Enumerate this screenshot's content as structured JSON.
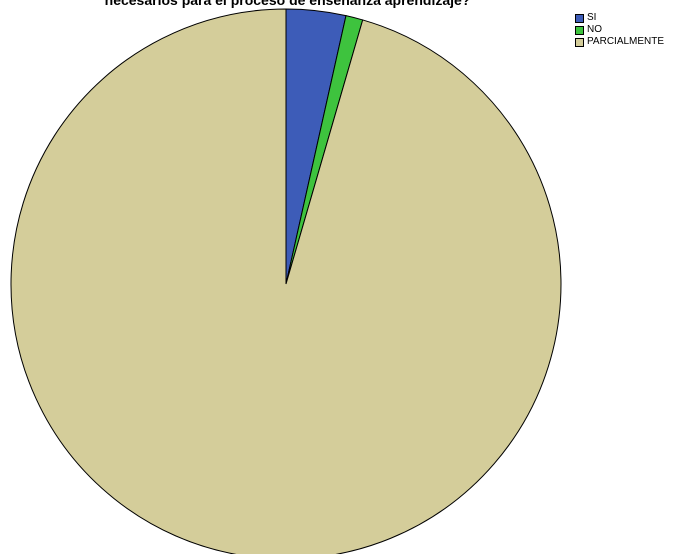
{
  "chart_data": {
    "type": "pie",
    "title": "necesarios para el proceso de enseñanza aprendizaje?",
    "categories": [
      "SI",
      "NO",
      "PARCIALMENTE"
    ],
    "values": [
      3.5,
      1.0,
      95.5
    ],
    "colors": [
      "#3d5cb8",
      "#3ec33e",
      "#d4cd9a"
    ],
    "legend": "top-right",
    "start_angle_deg": 0,
    "direction": "clockwise"
  }
}
